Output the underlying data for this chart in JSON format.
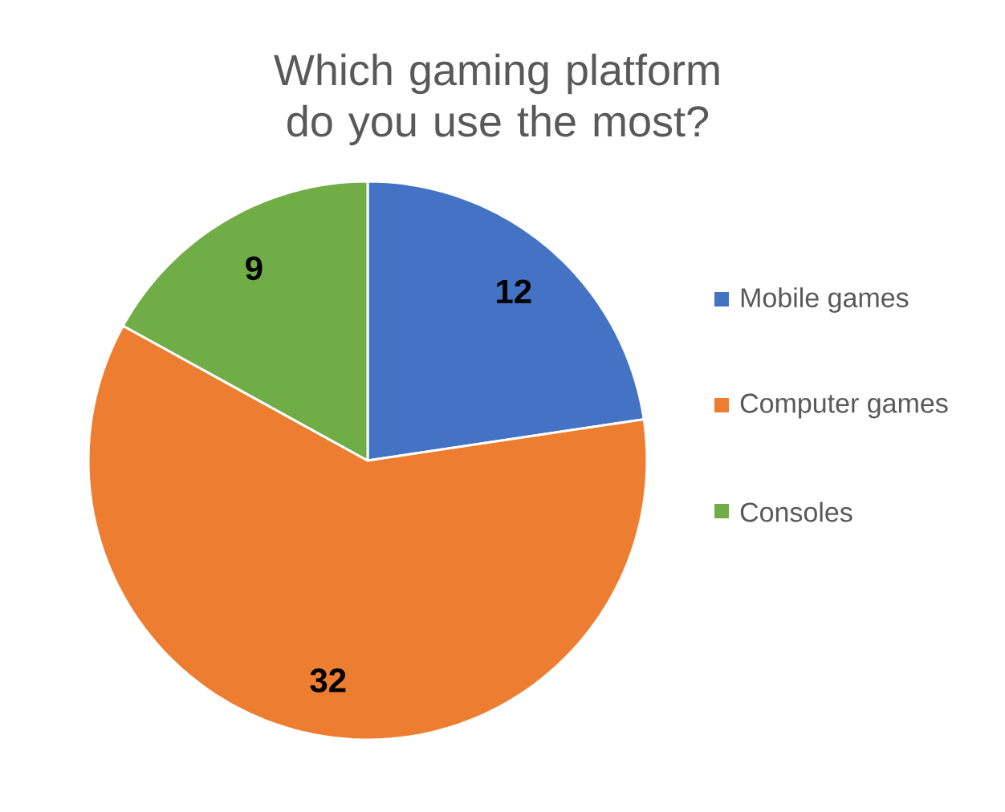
{
  "chart_data": {
    "type": "pie",
    "title": "Which gaming platform do you use the most?",
    "categories": [
      "Mobile games",
      "Computer games",
      "Consoles"
    ],
    "values": [
      12,
      32,
      9
    ],
    "colors": [
      "#4472c4",
      "#ed7d31",
      "#70ad47"
    ],
    "data_labels": true,
    "legend": "right"
  }
}
